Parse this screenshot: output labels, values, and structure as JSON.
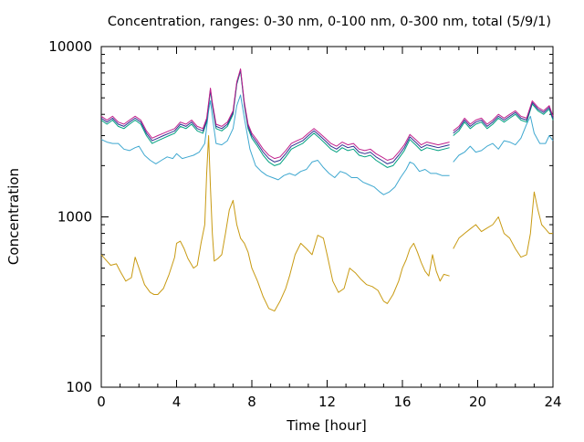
{
  "chart_data": {
    "type": "line",
    "title": "Concentration, ranges: 0-30 nm, 0-100 nm, 0-300 nm, total (5/9/1)",
    "xlabel": "Time [hour]",
    "ylabel": "Concentration",
    "xlim": [
      0,
      24
    ],
    "ylim": [
      100,
      10000
    ],
    "yscale": "log",
    "grid": false,
    "legend": "none",
    "x_ticks": [
      0,
      4,
      8,
      12,
      16,
      20,
      24
    ],
    "x_tick_labels": [
      "0",
      "4",
      "8",
      "12",
      "16",
      "20",
      "24"
    ],
    "y_ticks": [
      100,
      1000,
      10000
    ],
    "y_tick_labels": [
      "100",
      "1000",
      "10000"
    ],
    "gap": [
      18.5,
      18.7
    ],
    "series": [
      {
        "color": "#c89a12",
        "x": [
          0,
          0.3,
          0.5,
          0.8,
          1,
          1.3,
          1.6,
          1.8,
          2,
          2.3,
          2.6,
          2.8,
          3,
          3.3,
          3.6,
          3.9,
          4,
          4.2,
          4.4,
          4.6,
          4.9,
          5.1,
          5.3,
          5.5,
          5.6,
          5.7,
          5.8,
          5.9,
          6,
          6.1,
          6.2,
          6.4,
          6.6,
          6.8,
          7,
          7.2,
          7.4,
          7.6,
          7.8,
          8,
          8.3,
          8.6,
          8.9,
          9.2,
          9.5,
          9.8,
          10,
          10.3,
          10.6,
          10.9,
          11.2,
          11.5,
          11.8,
          12,
          12.3,
          12.6,
          12.9,
          13.2,
          13.5,
          13.8,
          14.1,
          14.4,
          14.7,
          15,
          15.2,
          15.5,
          15.8,
          16,
          16.2,
          16.4,
          16.6,
          16.8,
          17,
          17.2,
          17.4,
          17.6,
          17.8,
          18,
          18.2,
          18.5,
          18.7,
          19,
          19.3,
          19.6,
          19.9,
          20.2,
          20.5,
          20.8,
          21.1,
          21.4,
          21.7,
          22,
          22.3,
          22.6,
          22.8,
          23,
          23.2,
          23.4,
          23.6,
          23.8,
          24
        ],
        "values": [
          600,
          550,
          520,
          530,
          480,
          420,
          440,
          580,
          500,
          400,
          360,
          350,
          350,
          380,
          460,
          580,
          700,
          720,
          650,
          570,
          500,
          520,
          700,
          900,
          1800,
          3000,
          1500,
          800,
          550,
          560,
          570,
          600,
          800,
          1100,
          1250,
          900,
          750,
          700,
          620,
          500,
          420,
          340,
          290,
          280,
          320,
          380,
          450,
          600,
          700,
          650,
          600,
          780,
          750,
          600,
          420,
          360,
          380,
          500,
          470,
          430,
          400,
          390,
          370,
          320,
          310,
          350,
          420,
          500,
          560,
          650,
          700,
          620,
          540,
          480,
          450,
          600,
          480,
          420,
          460,
          450,
          650,
          750,
          800,
          850,
          900,
          820,
          860,
          900,
          1000,
          800,
          750,
          650,
          580,
          600,
          800,
          1400,
          1100,
          900,
          850,
          800,
          800
        ]
      },
      {
        "color": "#3fa8d0",
        "x": [
          0,
          0.3,
          0.6,
          0.9,
          1.2,
          1.5,
          1.8,
          2,
          2.3,
          2.6,
          2.9,
          3.2,
          3.5,
          3.8,
          4,
          4.3,
          4.6,
          4.9,
          5.2,
          5.5,
          5.7,
          5.8,
          5.9,
          6.1,
          6.4,
          6.7,
          7,
          7.2,
          7.4,
          7.6,
          7.9,
          8.2,
          8.5,
          8.8,
          9.1,
          9.4,
          9.7,
          10,
          10.3,
          10.6,
          10.9,
          11.2,
          11.5,
          11.8,
          12.1,
          12.4,
          12.7,
          13,
          13.3,
          13.6,
          13.9,
          14.2,
          14.5,
          14.8,
          15,
          15.3,
          15.6,
          15.9,
          16.2,
          16.4,
          16.6,
          16.9,
          17.2,
          17.5,
          17.8,
          18.1,
          18.5,
          18.7,
          19,
          19.3,
          19.6,
          19.9,
          20.2,
          20.5,
          20.8,
          21.1,
          21.4,
          21.7,
          22,
          22.3,
          22.6,
          22.8,
          23,
          23.3,
          23.6,
          23.8,
          24
        ],
        "values": [
          2850,
          2750,
          2700,
          2700,
          2500,
          2450,
          2550,
          2600,
          2300,
          2150,
          2050,
          2150,
          2250,
          2200,
          2350,
          2200,
          2250,
          2300,
          2400,
          2700,
          4200,
          4800,
          3900,
          2700,
          2650,
          2800,
          3300,
          4500,
          5200,
          3800,
          2500,
          2000,
          1850,
          1750,
          1700,
          1650,
          1750,
          1800,
          1750,
          1850,
          1900,
          2100,
          2150,
          1950,
          1800,
          1700,
          1850,
          1800,
          1700,
          1700,
          1600,
          1550,
          1500,
          1400,
          1350,
          1400,
          1500,
          1700,
          1900,
          2100,
          2050,
          1850,
          1900,
          1800,
          1800,
          1750,
          1750,
          2100,
          2300,
          2400,
          2600,
          2400,
          2450,
          2600,
          2700,
          2500,
          2800,
          2750,
          2650,
          2900,
          3500,
          3900,
          3100,
          2700,
          2700,
          3000,
          2800
        ]
      },
      {
        "color": "#00a080",
        "x": [
          0,
          0.3,
          0.6,
          0.9,
          1.2,
          1.5,
          1.8,
          2.1,
          2.4,
          2.7,
          3,
          3.3,
          3.6,
          3.9,
          4.2,
          4.5,
          4.8,
          5.1,
          5.4,
          5.6,
          5.8,
          5.9,
          6.1,
          6.4,
          6.7,
          7,
          7.2,
          7.4,
          7.6,
          7.8,
          8,
          8.3,
          8.6,
          8.9,
          9.2,
          9.5,
          9.8,
          10.1,
          10.4,
          10.7,
          11,
          11.3,
          11.6,
          11.9,
          12.2,
          12.5,
          12.8,
          13.1,
          13.4,
          13.7,
          14,
          14.3,
          14.6,
          14.9,
          15.2,
          15.5,
          15.8,
          16.1,
          16.4,
          16.7,
          17,
          17.3,
          17.6,
          17.9,
          18.2,
          18.5,
          18.7,
          19,
          19.3,
          19.6,
          19.9,
          20.2,
          20.5,
          20.8,
          21.1,
          21.4,
          21.7,
          22,
          22.3,
          22.6,
          22.9,
          23.2,
          23.5,
          23.8,
          24
        ],
        "values": [
          3700,
          3500,
          3700,
          3400,
          3300,
          3500,
          3700,
          3500,
          3000,
          2700,
          2800,
          2900,
          3000,
          3100,
          3400,
          3300,
          3500,
          3200,
          3100,
          3600,
          5500,
          4500,
          3300,
          3200,
          3400,
          4000,
          6000,
          7200,
          4500,
          3300,
          2900,
          2600,
          2300,
          2100,
          2000,
          2050,
          2250,
          2500,
          2600,
          2700,
          2900,
          3100,
          2900,
          2700,
          2500,
          2400,
          2550,
          2450,
          2500,
          2300,
          2250,
          2300,
          2150,
          2050,
          1950,
          2000,
          2200,
          2450,
          2850,
          2650,
          2450,
          2550,
          2500,
          2450,
          2500,
          2550,
          3000,
          3200,
          3600,
          3300,
          3500,
          3600,
          3300,
          3500,
          3800,
          3600,
          3800,
          4000,
          3700,
          3600,
          4600,
          4200,
          4000,
          4300,
          3700
        ]
      },
      {
        "color": "#303090",
        "x": [
          0,
          0.3,
          0.6,
          0.9,
          1.2,
          1.5,
          1.8,
          2.1,
          2.4,
          2.7,
          3,
          3.3,
          3.6,
          3.9,
          4.2,
          4.5,
          4.8,
          5.1,
          5.4,
          5.6,
          5.8,
          5.9,
          6.1,
          6.4,
          6.7,
          7,
          7.2,
          7.4,
          7.6,
          7.8,
          8,
          8.3,
          8.6,
          8.9,
          9.2,
          9.5,
          9.8,
          10.1,
          10.4,
          10.7,
          11,
          11.3,
          11.6,
          11.9,
          12.2,
          12.5,
          12.8,
          13.1,
          13.4,
          13.7,
          14,
          14.3,
          14.6,
          14.9,
          15.2,
          15.5,
          15.8,
          16.1,
          16.4,
          16.7,
          17,
          17.3,
          17.6,
          17.9,
          18.2,
          18.5,
          18.7,
          19,
          19.3,
          19.6,
          19.9,
          20.2,
          20.5,
          20.8,
          21.1,
          21.4,
          21.7,
          22,
          22.3,
          22.6,
          22.9,
          23.2,
          23.5,
          23.8,
          24
        ],
        "values": [
          3800,
          3600,
          3800,
          3500,
          3400,
          3600,
          3800,
          3600,
          3100,
          2800,
          2900,
          3000,
          3100,
          3200,
          3500,
          3400,
          3600,
          3300,
          3200,
          3700,
          5600,
          4600,
          3400,
          3300,
          3500,
          4100,
          6100,
          7300,
          4600,
          3400,
          3000,
          2700,
          2400,
          2200,
          2100,
          2150,
          2350,
          2600,
          2700,
          2800,
          3000,
          3200,
          3000,
          2800,
          2600,
          2500,
          2650,
          2550,
          2600,
          2400,
          2350,
          2400,
          2250,
          2150,
          2050,
          2100,
          2300,
          2550,
          2950,
          2750,
          2550,
          2650,
          2600,
          2550,
          2600,
          2650,
          3100,
          3300,
          3700,
          3400,
          3600,
          3700,
          3400,
          3600,
          3900,
          3700,
          3900,
          4100,
          3800,
          3700,
          4700,
          4300,
          4100,
          4400,
          3800
        ]
      },
      {
        "color": "#c0208c",
        "x": [
          0,
          0.3,
          0.6,
          0.9,
          1.2,
          1.5,
          1.8,
          2.1,
          2.4,
          2.7,
          3,
          3.3,
          3.6,
          3.9,
          4.2,
          4.5,
          4.8,
          5.1,
          5.4,
          5.6,
          5.8,
          5.9,
          6.1,
          6.4,
          6.7,
          7,
          7.2,
          7.4,
          7.6,
          7.8,
          8,
          8.3,
          8.6,
          8.9,
          9.2,
          9.5,
          9.8,
          10.1,
          10.4,
          10.7,
          11,
          11.3,
          11.6,
          11.9,
          12.2,
          12.5,
          12.8,
          13.1,
          13.4,
          13.7,
          14,
          14.3,
          14.6,
          14.9,
          15.2,
          15.5,
          15.8,
          16.1,
          16.4,
          16.7,
          17,
          17.3,
          17.6,
          17.9,
          18.2,
          18.5,
          18.7,
          19,
          19.3,
          19.6,
          19.9,
          20.2,
          20.5,
          20.8,
          21.1,
          21.4,
          21.7,
          22,
          22.3,
          22.6,
          22.9,
          23.2,
          23.5,
          23.8,
          24
        ],
        "values": [
          3900,
          3700,
          3900,
          3600,
          3500,
          3700,
          3900,
          3700,
          3200,
          2900,
          3000,
          3100,
          3200,
          3300,
          3600,
          3500,
          3700,
          3400,
          3300,
          3800,
          5700,
          4700,
          3500,
          3400,
          3600,
          4200,
          6200,
          7400,
          4700,
          3500,
          3100,
          2800,
          2500,
          2300,
          2200,
          2250,
          2450,
          2700,
          2800,
          2900,
          3100,
          3300,
          3100,
          2900,
          2700,
          2600,
          2750,
          2650,
          2700,
          2500,
          2450,
          2500,
          2350,
          2250,
          2150,
          2200,
          2400,
          2650,
          3050,
          2850,
          2650,
          2750,
          2700,
          2650,
          2700,
          2750,
          3200,
          3400,
          3800,
          3500,
          3700,
          3800,
          3500,
          3700,
          4000,
          3800,
          4000,
          4200,
          3900,
          3800,
          4800,
          4400,
          4200,
          4500,
          3900
        ]
      }
    ]
  }
}
